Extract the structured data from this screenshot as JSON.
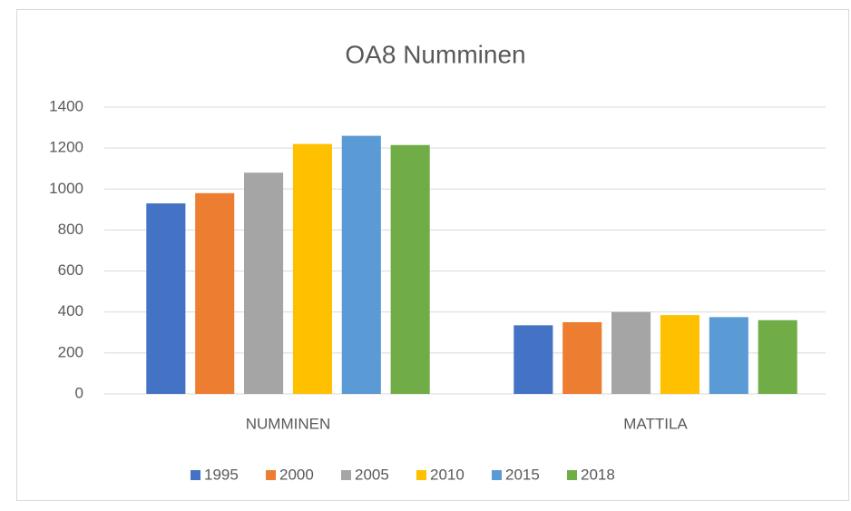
{
  "chart_data": {
    "type": "bar",
    "title": "OA8 Numminen",
    "categories": [
      "NUMMINEN",
      "MATTILA"
    ],
    "series": [
      {
        "name": "1995",
        "color": "#4472c4",
        "values": [
          930,
          335
        ]
      },
      {
        "name": "2000",
        "color": "#ed7d31",
        "values": [
          980,
          350
        ]
      },
      {
        "name": "2005",
        "color": "#a5a5a5",
        "values": [
          1080,
          400
        ]
      },
      {
        "name": "2010",
        "color": "#ffc000",
        "values": [
          1220,
          385
        ]
      },
      {
        "name": "2015",
        "color": "#5b9bd5",
        "values": [
          1260,
          375
        ]
      },
      {
        "name": "2018",
        "color": "#70ad47",
        "values": [
          1215,
          360
        ]
      }
    ],
    "ylim": [
      0,
      1400
    ],
    "yticks": [
      0,
      200,
      400,
      600,
      800,
      1000,
      1200,
      1400
    ],
    "grid": true,
    "legend": "bottom"
  }
}
